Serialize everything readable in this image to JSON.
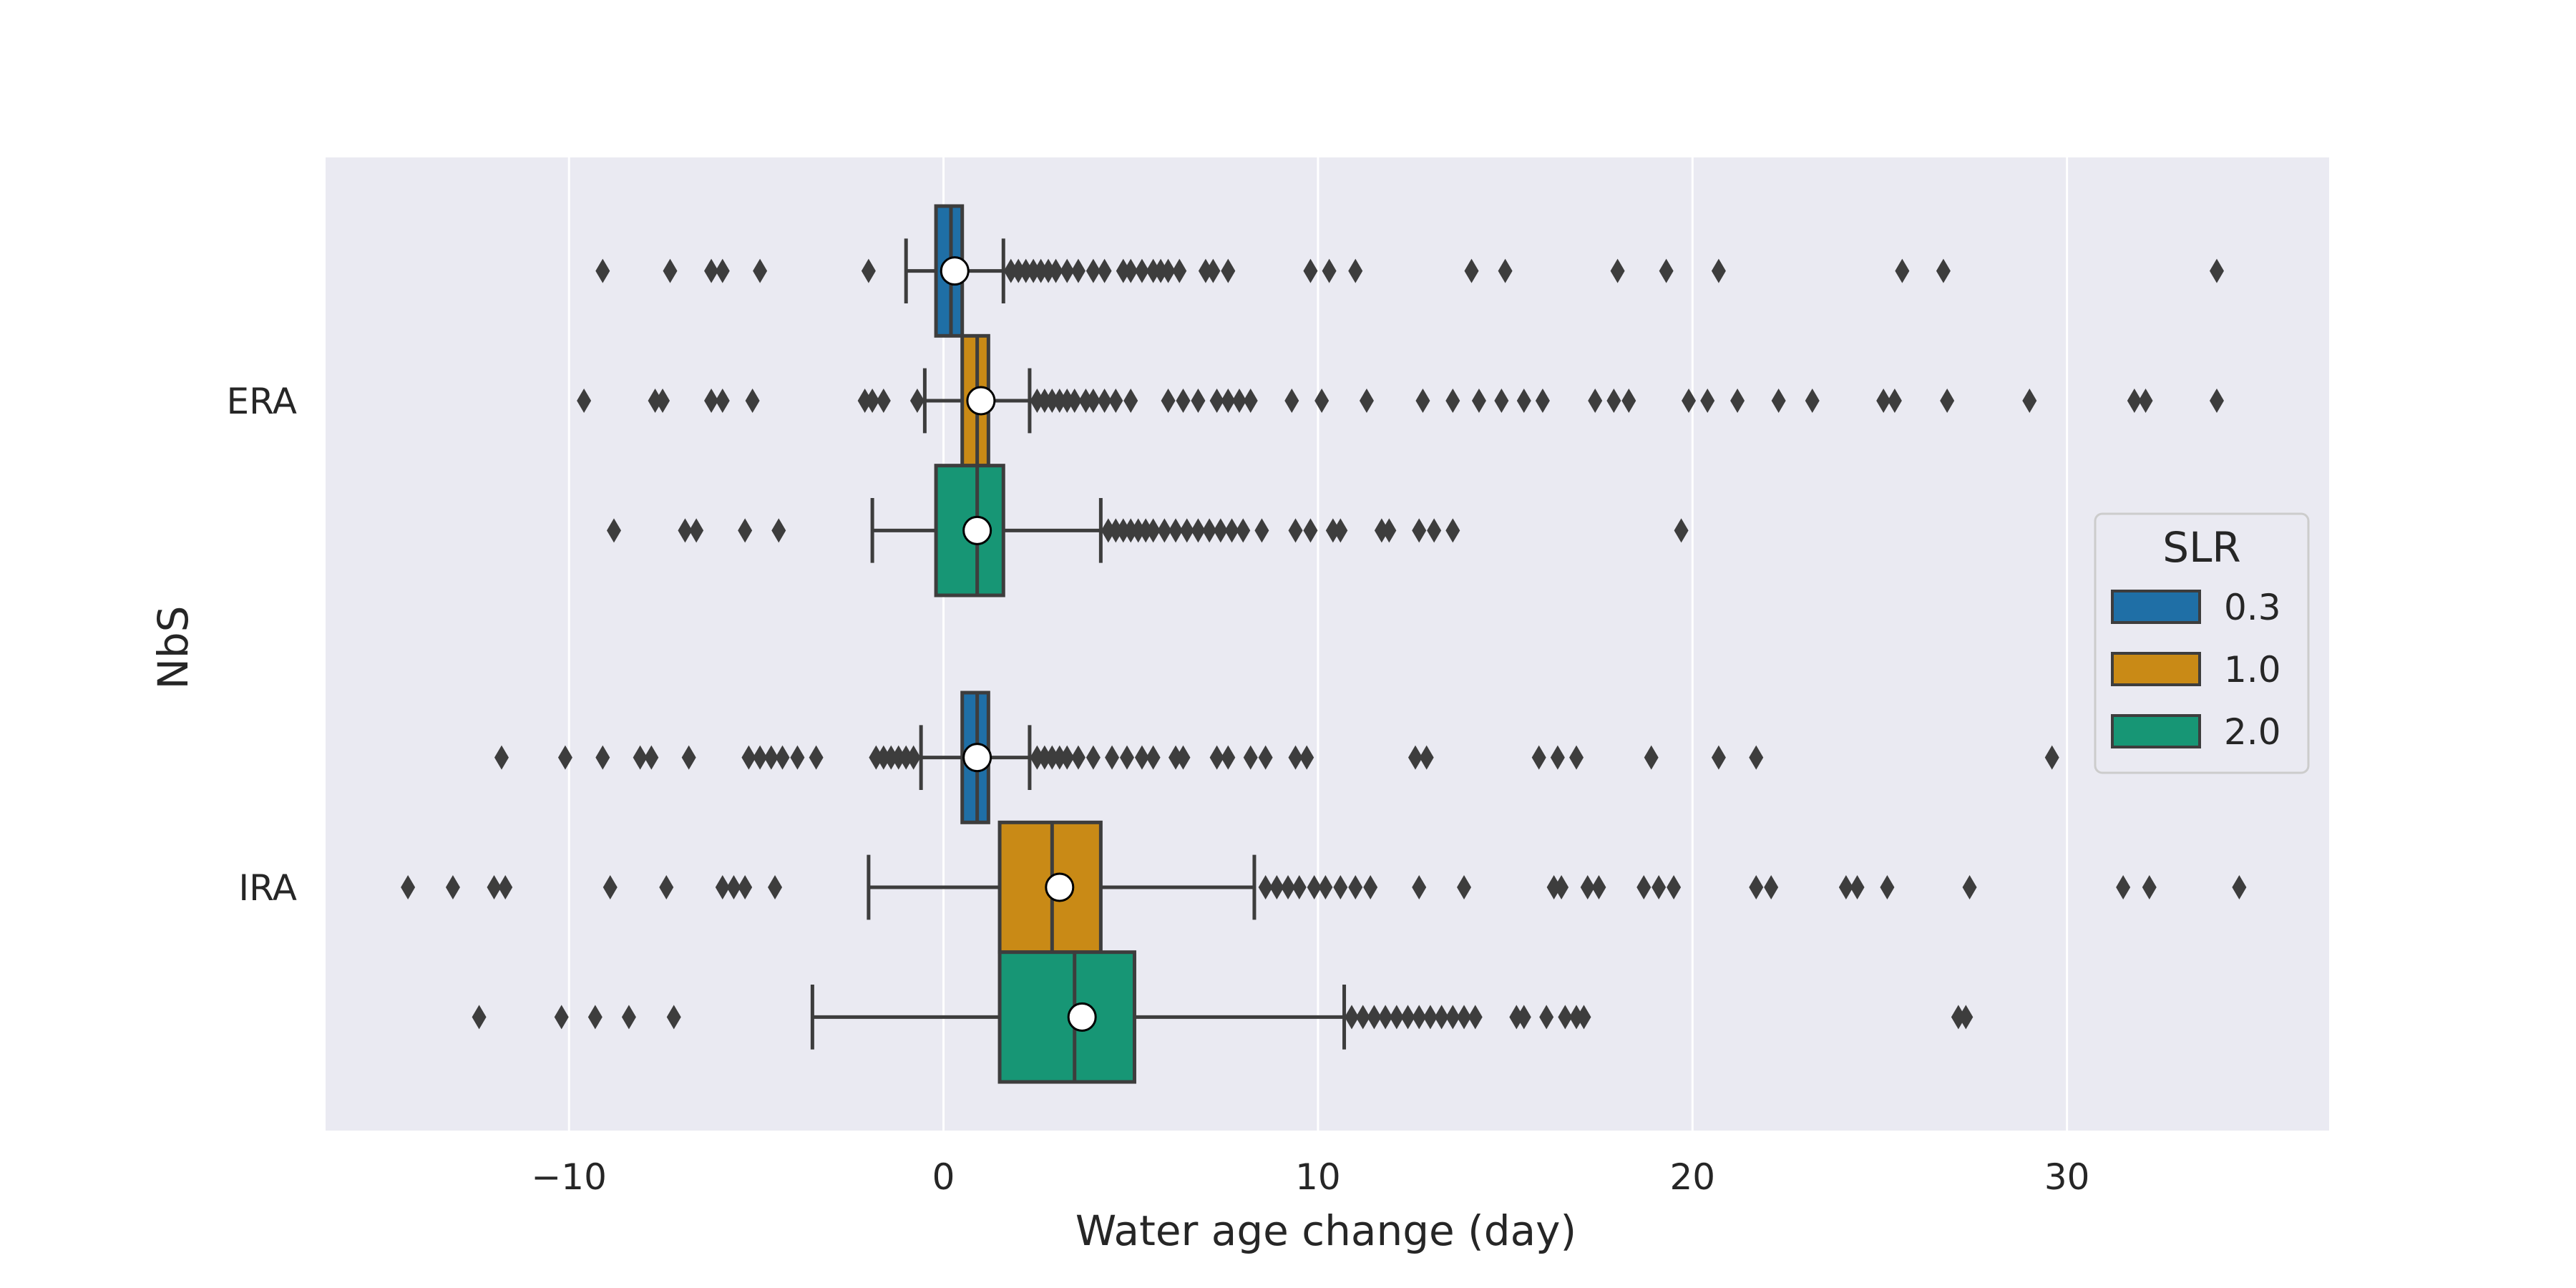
{
  "chart_data": {
    "type": "box",
    "orientation": "horizontal",
    "xlabel": "Water age change (day)",
    "ylabel": "NbS",
    "xlim": [
      -16.5,
      37
    ],
    "xticks": [
      -10,
      0,
      10,
      20,
      30
    ],
    "xtick_labels": [
      "−10",
      "0",
      "10",
      "20",
      "30"
    ],
    "categories": [
      "ERA",
      "IRA"
    ],
    "grid": true,
    "legend": {
      "title": "SLR",
      "placement": "center-right"
    },
    "series": [
      {
        "name": "0.3",
        "color": "#1f6fa6",
        "boxes": [
          {
            "category": "ERA",
            "whisker_low": -1.0,
            "q1": -0.2,
            "median": 0.2,
            "q3": 0.5,
            "whisker_high": 1.6,
            "mean": 0.3,
            "outliers": [
              -9.1,
              -7.3,
              -6.2,
              -5.9,
              -4.9,
              -2.0,
              1.8,
              2.0,
              2.2,
              2.4,
              2.6,
              2.8,
              3.0,
              3.3,
              3.6,
              4.0,
              4.3,
              4.8,
              5.0,
              5.3,
              5.6,
              5.8,
              6.0,
              6.3,
              7.0,
              7.2,
              7.6,
              9.8,
              10.3,
              11.0,
              14.1,
              15.0,
              18.0,
              19.3,
              20.7,
              25.6,
              26.7,
              34.0
            ]
          },
          {
            "category": "IRA",
            "whisker_low": -0.6,
            "q1": 0.5,
            "median": 0.9,
            "q3": 1.2,
            "whisker_high": 2.3,
            "mean": 0.9,
            "outliers": [
              -11.8,
              -10.1,
              -9.1,
              -8.1,
              -7.8,
              -6.8,
              -5.2,
              -4.9,
              -4.6,
              -4.3,
              -3.9,
              -3.4,
              -1.8,
              -1.6,
              -1.4,
              -1.2,
              -1.0,
              -0.8,
              2.5,
              2.7,
              2.9,
              3.1,
              3.3,
              3.6,
              4.0,
              4.5,
              4.9,
              5.3,
              5.6,
              6.2,
              6.4,
              7.3,
              7.6,
              8.2,
              8.6,
              9.4,
              9.7,
              12.6,
              12.9,
              15.9,
              16.4,
              16.9,
              18.9,
              20.7,
              21.7,
              29.6
            ]
          }
        ]
      },
      {
        "name": "1.0",
        "color": "#c98a16",
        "boxes": [
          {
            "category": "ERA",
            "whisker_low": -0.5,
            "q1": 0.5,
            "median": 0.9,
            "q3": 1.2,
            "whisker_high": 2.3,
            "mean": 1.0,
            "outliers": [
              -9.6,
              -7.7,
              -7.5,
              -6.2,
              -5.9,
              -5.1,
              -2.1,
              -1.9,
              -1.6,
              -0.7,
              2.5,
              2.7,
              2.9,
              3.1,
              3.3,
              3.5,
              3.8,
              4.0,
              4.3,
              4.6,
              5.0,
              6.0,
              6.4,
              6.8,
              7.3,
              7.6,
              7.9,
              8.2,
              9.3,
              10.1,
              11.3,
              12.8,
              13.6,
              14.3,
              14.9,
              15.5,
              16.0,
              17.4,
              17.9,
              18.3,
              19.9,
              20.4,
              21.2,
              22.3,
              23.2,
              25.1,
              25.4,
              26.8,
              29.0,
              31.8,
              32.1,
              34.0
            ]
          },
          {
            "category": "IRA",
            "whisker_low": -2.0,
            "q1": 1.5,
            "median": 2.9,
            "q3": 4.2,
            "whisker_high": 8.3,
            "mean": 3.1,
            "outliers": [
              -14.3,
              -13.1,
              -12.0,
              -11.7,
              -8.9,
              -7.4,
              -5.9,
              -5.6,
              -5.3,
              -4.5,
              8.6,
              8.9,
              9.2,
              9.5,
              9.9,
              10.2,
              10.6,
              11.0,
              11.4,
              12.7,
              13.9,
              16.3,
              16.5,
              17.2,
              17.5,
              18.7,
              19.1,
              19.5,
              21.7,
              22.1,
              24.1,
              24.4,
              25.2,
              27.4,
              31.5,
              32.2,
              34.6
            ]
          }
        ]
      },
      {
        "name": "2.0",
        "color": "#179675",
        "boxes": [
          {
            "category": "ERA",
            "whisker_low": -1.9,
            "q1": -0.2,
            "median": 0.9,
            "q3": 1.6,
            "whisker_high": 4.2,
            "mean": 0.9,
            "outliers": [
              -8.8,
              -6.9,
              -6.6,
              -5.3,
              -4.4,
              4.4,
              4.6,
              4.8,
              5.0,
              5.2,
              5.4,
              5.6,
              5.9,
              6.2,
              6.5,
              6.8,
              7.1,
              7.4,
              7.7,
              8.0,
              8.5,
              9.4,
              9.8,
              10.4,
              10.6,
              11.7,
              11.9,
              12.7,
              13.1,
              13.6,
              19.7
            ]
          },
          {
            "category": "IRA",
            "whisker_low": -3.5,
            "q1": 1.5,
            "median": 3.5,
            "q3": 5.1,
            "whisker_high": 10.7,
            "mean": 3.7,
            "outliers": [
              -12.4,
              -10.2,
              -9.3,
              -8.4,
              -7.2,
              10.9,
              11.2,
              11.5,
              11.8,
              12.1,
              12.4,
              12.7,
              13.0,
              13.3,
              13.6,
              13.9,
              14.2,
              15.3,
              15.5,
              16.1,
              16.6,
              16.9,
              17.1,
              27.1,
              27.3
            ]
          }
        ]
      }
    ]
  }
}
